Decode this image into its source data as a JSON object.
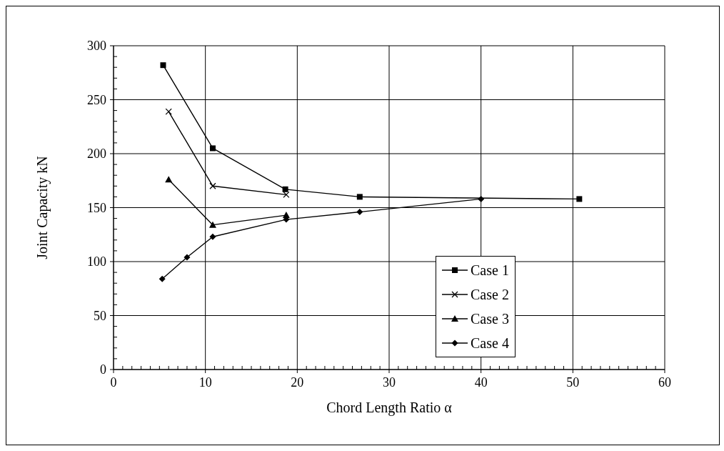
{
  "chart_data": {
    "type": "line",
    "xlabel": "Chord Length Ratio α",
    "ylabel": "Joint Capacity kN",
    "xlim": [
      0,
      60
    ],
    "ylim": [
      0,
      300
    ],
    "xticks": [
      0,
      {
        "value": 1,
        "label": null
      },
      {
        "value": 2,
        "label": null
      },
      {
        "value": 3,
        "label": null
      },
      {
        "value": 4,
        "label": null
      },
      {
        "value": 5,
        "label": null
      },
      {
        "value": 6,
        "label": null
      },
      {
        "value": 7,
        "label": null
      },
      {
        "value": 8,
        "label": null
      },
      {
        "value": 9,
        "label": null
      },
      10,
      {
        "value": 11,
        "label": null
      },
      {
        "value": 12,
        "label": null
      },
      {
        "value": 13,
        "label": null
      },
      {
        "value": 14,
        "label": null
      },
      {
        "value": 15,
        "label": null
      },
      {
        "value": 16,
        "label": null
      },
      {
        "value": 17,
        "label": null
      },
      {
        "value": 18,
        "label": null
      },
      {
        "value": 19,
        "label": null
      },
      20,
      {
        "value": 21,
        "label": null
      },
      {
        "value": 22,
        "label": null
      },
      {
        "value": 23,
        "label": null
      },
      {
        "value": 24,
        "label": null
      },
      {
        "value": 25,
        "label": null
      },
      {
        "value": 26,
        "label": null
      },
      {
        "value": 27,
        "label": null
      },
      {
        "value": 28,
        "label": null
      },
      {
        "value": 29,
        "label": null
      },
      30,
      {
        "value": 31,
        "label": null
      },
      {
        "value": 32,
        "label": null
      },
      {
        "value": 33,
        "label": null
      },
      {
        "value": 34,
        "label": null
      },
      {
        "value": 35,
        "label": null
      },
      {
        "value": 36,
        "label": null
      },
      {
        "value": 37,
        "label": null
      },
      {
        "value": 38,
        "label": null
      },
      {
        "value": 39,
        "label": null
      },
      40,
      {
        "value": 41,
        "label": null
      },
      {
        "value": 42,
        "label": null
      },
      {
        "value": 43,
        "label": null
      },
      {
        "value": 44,
        "label": null
      },
      {
        "value": 45,
        "label": null
      },
      {
        "value": 46,
        "label": null
      },
      {
        "value": 47,
        "label": null
      },
      {
        "value": 48,
        "label": null
      },
      {
        "value": 49,
        "label": null
      },
      50,
      {
        "value": 51,
        "label": null
      },
      {
        "value": 52,
        "label": null
      },
      {
        "value": 53,
        "label": null
      },
      {
        "value": 54,
        "label": null
      },
      {
        "value": 55,
        "label": null
      },
      {
        "value": 56,
        "label": null
      },
      {
        "value": 57,
        "label": null
      },
      {
        "value": 58,
        "label": null
      },
      {
        "value": 59,
        "label": null
      },
      60
    ],
    "yticks": [
      0,
      {
        "value": 10,
        "label": null
      },
      {
        "value": 20,
        "label": null
      },
      {
        "value": 30,
        "label": null
      },
      {
        "value": 40,
        "label": null
      },
      50,
      {
        "value": 60,
        "label": null
      },
      {
        "value": 70,
        "label": null
      },
      {
        "value": 80,
        "label": null
      },
      {
        "value": 90,
        "label": null
      },
      100,
      {
        "value": 110,
        "label": null
      },
      {
        "value": 120,
        "label": null
      },
      {
        "value": 130,
        "label": null
      },
      {
        "value": 140,
        "label": null
      },
      150,
      {
        "value": 160,
        "label": null
      },
      {
        "value": 170,
        "label": null
      },
      {
        "value": 180,
        "label": null
      },
      {
        "value": 190,
        "label": null
      },
      200,
      {
        "value": 210,
        "label": null
      },
      {
        "value": 220,
        "label": null
      },
      {
        "value": 230,
        "label": null
      },
      {
        "value": 240,
        "label": null
      },
      250,
      {
        "value": 260,
        "label": null
      },
      {
        "value": 270,
        "label": null
      },
      {
        "value": 280,
        "label": null
      },
      {
        "value": 290,
        "label": null
      },
      300
    ],
    "grid": true,
    "legend": "bottom right",
    "line_style": "solid",
    "series": [
      {
        "name": "Case 1",
        "color": "#000000",
        "marker": "square",
        "x": [
          5.4,
          10.8,
          18.7,
          26.8,
          50.7
        ],
        "values": [
          282,
          205,
          167,
          160,
          158
        ]
      },
      {
        "name": "Case 2",
        "color": "#000000",
        "marker": "cross",
        "x": [
          6.0,
          10.8,
          18.8
        ],
        "values": [
          239,
          170,
          162
        ]
      },
      {
        "name": "Case 3",
        "color": "#000000",
        "marker": "triangle",
        "x": [
          6.0,
          10.8,
          18.8
        ],
        "values": [
          176,
          134,
          143
        ]
      },
      {
        "name": "Case 4",
        "color": "#000000",
        "marker": "diamond",
        "x": [
          5.3,
          8.0,
          10.8,
          18.8,
          26.8,
          40.0
        ],
        "values": [
          84,
          104,
          123,
          139,
          146,
          158
        ]
      }
    ]
  }
}
